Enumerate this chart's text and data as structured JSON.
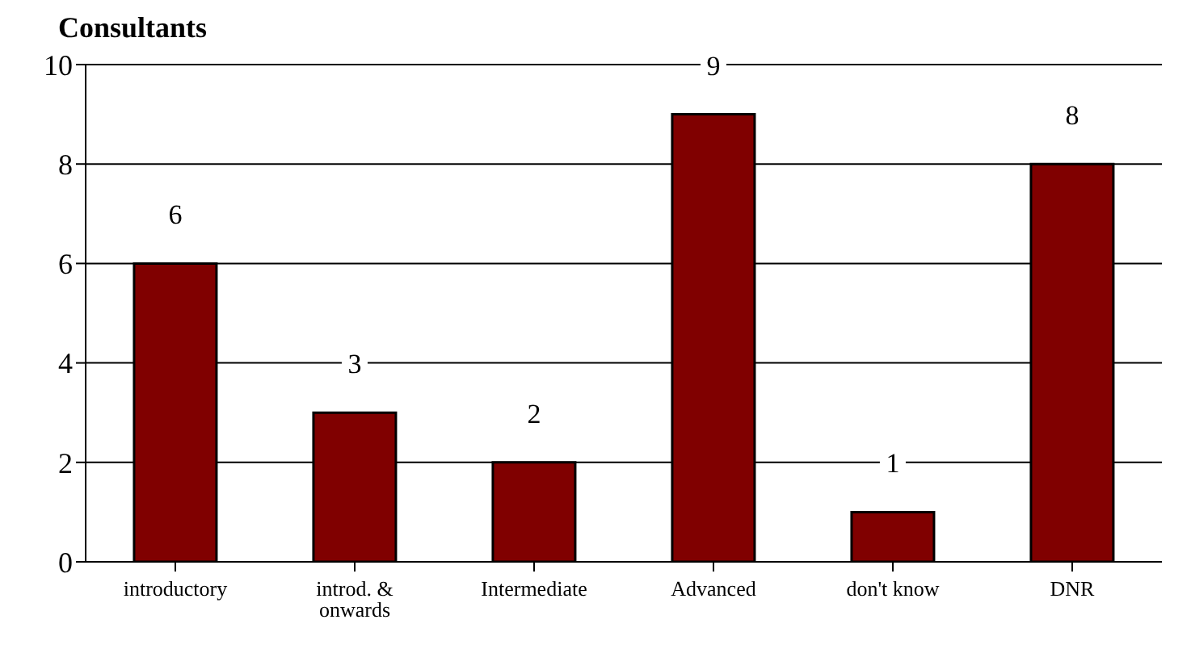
{
  "chart_data": {
    "type": "bar",
    "title": "Consultants",
    "categories": [
      "introductory",
      "introd. & onwards",
      "Intermediate",
      "Advanced",
      "don't know",
      "DNR"
    ],
    "values": [
      6,
      3,
      2,
      9,
      1,
      8
    ],
    "color": "#800000",
    "ylim": [
      0,
      10
    ],
    "yticks": [
      0,
      2,
      4,
      6,
      8,
      10
    ],
    "grid": "y",
    "data_labels": true
  }
}
